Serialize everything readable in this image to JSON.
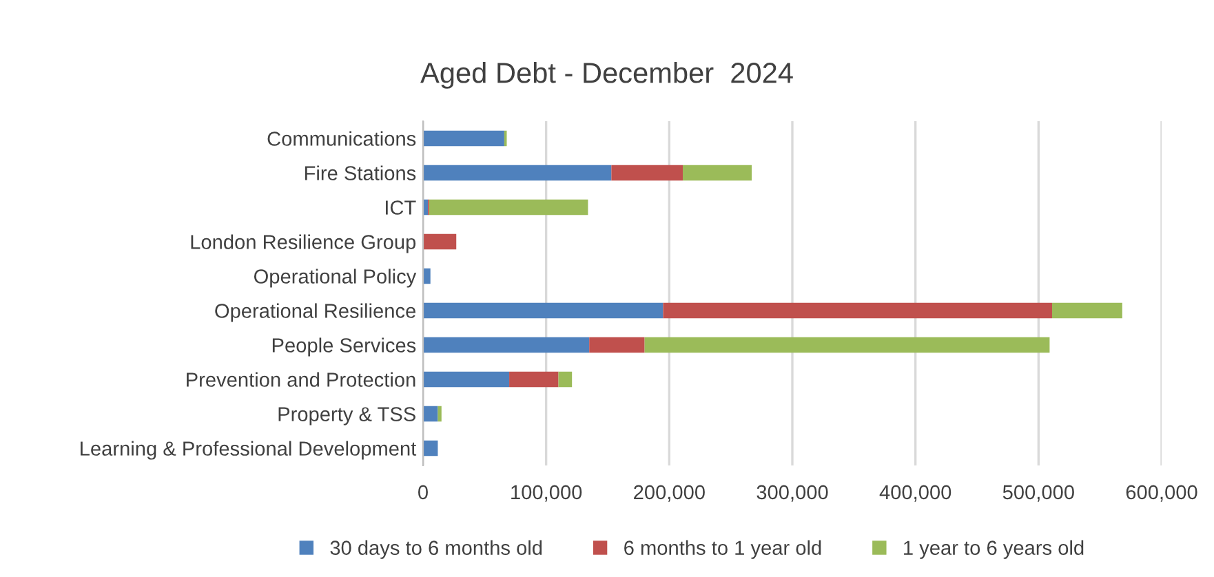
{
  "chart_data": {
    "type": "bar",
    "orientation": "horizontal",
    "stacked": true,
    "title": "Aged Debt - December  2024",
    "categories": [
      "Communications",
      "Fire Stations",
      "ICT",
      "London Resilience Group",
      "Operational Policy",
      "Operational Resilience",
      "People Services",
      "Prevention and Protection",
      "Property & TSS",
      "Learning & Professional Development"
    ],
    "series": [
      {
        "name": "30 days to 6 months old",
        "color": "#4f81bd",
        "values": [
          66000,
          153000,
          4000,
          0,
          6000,
          195000,
          135000,
          70000,
          12000,
          12000
        ]
      },
      {
        "name": "6 months to 1 year old",
        "color": "#c0504d",
        "values": [
          0,
          58000,
          1000,
          27000,
          0,
          316000,
          45000,
          40000,
          0,
          0
        ]
      },
      {
        "name": "1 year to 6 years old",
        "color": "#9bbb59",
        "values": [
          2000,
          56000,
          129000,
          0,
          0,
          57000,
          329000,
          11000,
          3000,
          0
        ]
      }
    ],
    "xlim": [
      0,
      600000
    ],
    "xticks": [
      {
        "value": 0,
        "label": "0"
      },
      {
        "value": 100000,
        "label": "100,000"
      },
      {
        "value": 200000,
        "label": "200,000"
      },
      {
        "value": 300000,
        "label": "300,000"
      },
      {
        "value": 400000,
        "label": "400,000"
      },
      {
        "value": 500000,
        "label": "500,000"
      },
      {
        "value": 600000,
        "label": "600,000"
      }
    ],
    "grid": "x",
    "legend": "bottom"
  }
}
